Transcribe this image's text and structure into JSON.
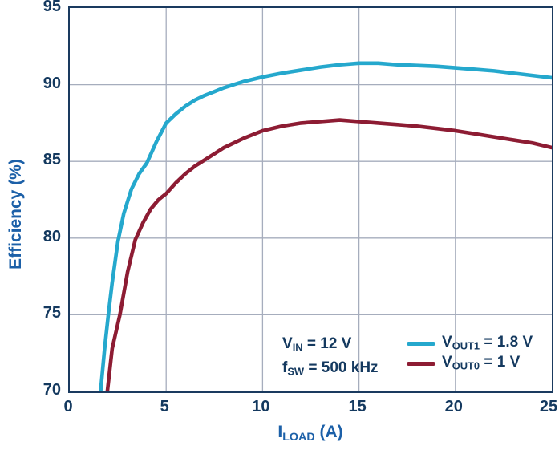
{
  "chart_data": {
    "type": "line",
    "title": "",
    "ylabel": "Efficiency (%)",
    "xlabel": {
      "pre": "I",
      "sub": "LOAD",
      "post": " (A)"
    },
    "xlim": [
      0,
      25
    ],
    "ylim": [
      70,
      95
    ],
    "x_ticks": [
      0,
      5,
      10,
      15,
      20,
      25
    ],
    "y_ticks": [
      70,
      75,
      80,
      85,
      90,
      95
    ],
    "grid": true,
    "legend_position": "inside bottom-right",
    "series": [
      {
        "name": "VOUT1 = 1.8 V",
        "color": "#25a8cd",
        "x": [
          1.6,
          1.8,
          2.0,
          2.2,
          2.5,
          2.8,
          3.2,
          3.6,
          4.0,
          4.5,
          5.0,
          5.5,
          6.0,
          6.5,
          7.0,
          7.5,
          8.0,
          8.5,
          9.0,
          10,
          11,
          12,
          13,
          14,
          15,
          16,
          17,
          18,
          19,
          20,
          21,
          22,
          23,
          24,
          25
        ],
        "y": [
          70,
          72.7,
          75,
          77.1,
          79.8,
          81.6,
          83.2,
          84.2,
          84.9,
          86.3,
          87.5,
          88.1,
          88.6,
          89.0,
          89.3,
          89.55,
          89.8,
          90.0,
          90.2,
          90.5,
          90.75,
          90.95,
          91.15,
          91.3,
          91.4,
          91.4,
          91.3,
          91.25,
          91.2,
          91.1,
          91.0,
          90.9,
          90.75,
          90.6,
          90.45
        ]
      },
      {
        "name": "VOUT0 = 1 V",
        "color": "#8d1c33",
        "x": [
          1.95,
          2.2,
          2.6,
          3.0,
          3.4,
          3.8,
          4.2,
          4.6,
          5.0,
          5.5,
          6.0,
          6.5,
          7.0,
          7.5,
          8.0,
          9.0,
          10,
          11,
          12,
          13,
          14,
          15,
          16,
          17,
          18,
          19,
          20,
          21,
          22,
          23,
          24,
          25
        ],
        "y": [
          70,
          72.8,
          75,
          77.8,
          79.9,
          81.0,
          81.9,
          82.5,
          82.9,
          83.6,
          84.2,
          84.7,
          85.1,
          85.5,
          85.9,
          86.5,
          87.0,
          87.3,
          87.5,
          87.6,
          87.7,
          87.6,
          87.5,
          87.4,
          87.3,
          87.15,
          87.0,
          86.8,
          86.6,
          86.4,
          86.2,
          85.9
        ]
      }
    ]
  },
  "annotations": {
    "line1": {
      "pre": "V",
      "sub": "IN",
      "post": " = 12 V"
    },
    "line2": {
      "pre": "f",
      "sub": "SW",
      "post": " = 500 kHz"
    }
  },
  "legend": {
    "entries": [
      {
        "pre": "V",
        "sub": "OUT1",
        "post": " = 1.8 V",
        "color": "#25a8cd"
      },
      {
        "pre": "V",
        "sub": "OUT0",
        "post": " = 1 V",
        "color": "#8d1c33"
      }
    ]
  },
  "colors": {
    "plot_border": "#1a3a5f",
    "gridline": "#a6adbd",
    "tick_label": "#14395f",
    "axis_title": "#1c60a8",
    "series_vout1": "#25a8cd",
    "series_vout0": "#8d1c33",
    "background": "#ffffff"
  }
}
